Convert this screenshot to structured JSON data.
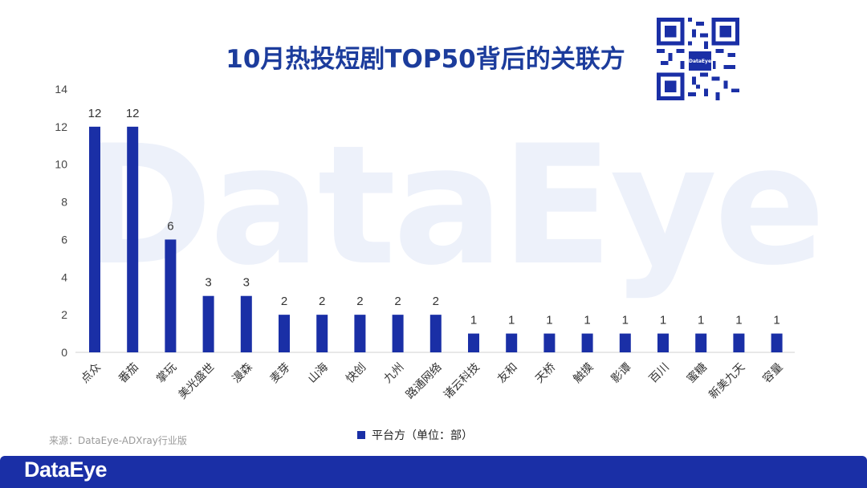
{
  "title": "10月热投短剧TOP50背后的关联方",
  "watermark": "DataEye",
  "qr_label": "DataEye",
  "source": "来源：DataEye-ADXray行业版",
  "footer_logo": "DataEye",
  "colors": {
    "bar": "#1a2fa6",
    "title": "#1c3c9c",
    "footer": "#1a2fa6"
  },
  "chart_data": {
    "type": "bar",
    "categories": [
      "点众",
      "番茄",
      "掌玩",
      "美光盛世",
      "漫森",
      "麦芽",
      "山海",
      "快创",
      "九州",
      "路通网络",
      "诸云科技",
      "友和",
      "天桥",
      "触摸",
      "影谭",
      "百川",
      "蜜糖",
      "新美九天",
      "容量"
    ],
    "series": [
      {
        "name": "平台方（单位：部）",
        "values": [
          12,
          12,
          6,
          3,
          3,
          2,
          2,
          2,
          2,
          2,
          1,
          1,
          1,
          1,
          1,
          1,
          1,
          1,
          1
        ]
      }
    ],
    "ylim": [
      0,
      14
    ],
    "yticks": [
      0,
      2,
      4,
      6,
      8,
      10,
      12,
      14
    ],
    "data_labels": true,
    "legend_position": "bottom",
    "grid": false
  }
}
